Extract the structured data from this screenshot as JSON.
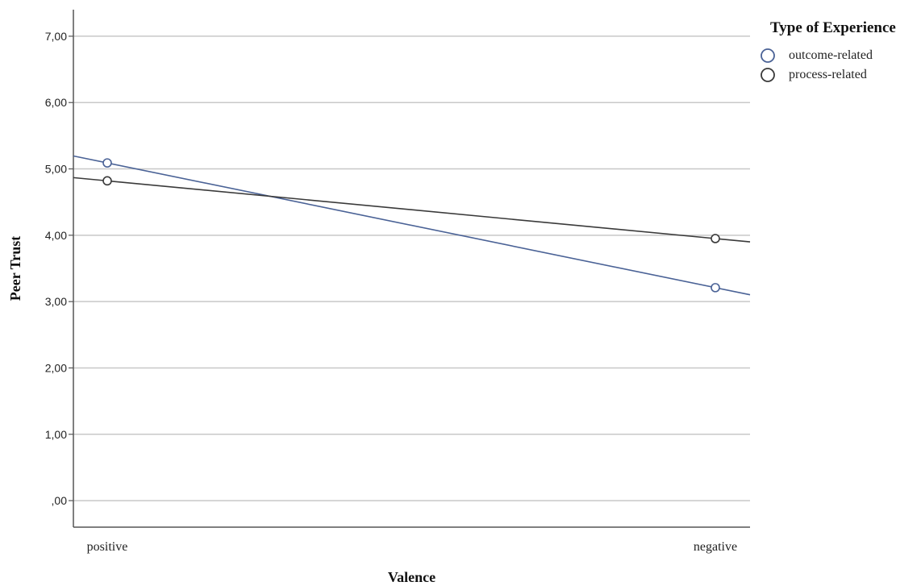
{
  "chart_data": {
    "type": "line",
    "xlabel": "Valence",
    "ylabel": "Peer Trust",
    "categories": [
      "positive",
      "negative"
    ],
    "ylim": [
      -0.4,
      7.4
    ],
    "yticks": [
      0,
      1,
      2,
      3,
      4,
      5,
      6,
      7
    ],
    "ytick_labels": [
      ",00",
      "1,00",
      "2,00",
      "3,00",
      "4,00",
      "5,00",
      "6,00",
      "7,00"
    ],
    "grid": true,
    "legend": {
      "title": "Type of Experience",
      "placement": "top-right"
    },
    "series": [
      {
        "name": "outcome-related",
        "values": [
          5.09,
          3.21
        ],
        "color": "#4a6296"
      },
      {
        "name": "process-related",
        "values": [
          4.82,
          3.95
        ],
        "color": "#3a3a3a"
      }
    ]
  }
}
